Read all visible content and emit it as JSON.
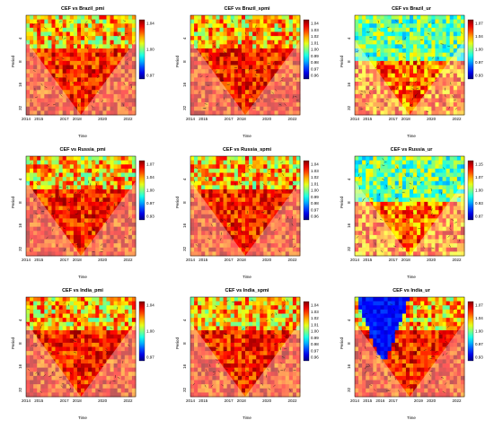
{
  "chart_data": [
    {
      "type": "heatmap",
      "title": "CEF  vs  Brazil_pmi",
      "xlabel": "Time",
      "ylabel": "Period",
      "x_ticks": [
        "2014",
        "2015",
        "2017",
        "2018",
        "2020",
        "2022"
      ],
      "y_ticks": [
        "4",
        "8",
        "16",
        "32"
      ],
      "colorbar_ticks": [
        "1.04",
        "1.00",
        "0.97"
      ],
      "xlim": [
        2014,
        2022.6
      ],
      "ylim_log2": [
        1,
        5.3
      ]
    },
    {
      "type": "heatmap",
      "title": "CEF  vs  Brazil_spmi",
      "xlabel": "Time",
      "ylabel": "Period",
      "x_ticks": [
        "2014",
        "2015",
        "2017",
        "2018",
        "2020",
        "2022"
      ],
      "y_ticks": [
        "4",
        "8",
        "16",
        "32"
      ],
      "colorbar_ticks": [
        "1.04",
        "1.03",
        "1.02",
        "1.01",
        "1.00",
        "0.99",
        "0.98",
        "0.97",
        "0.96"
      ],
      "xlim": [
        2014,
        2022.6
      ],
      "ylim_log2": [
        1,
        5.3
      ]
    },
    {
      "type": "heatmap",
      "title": "CEF  vs  Brazil_ur",
      "xlabel": "Time",
      "ylabel": "Period",
      "x_ticks": [
        "2014",
        "2015",
        "2017",
        "2018",
        "2020",
        "2022"
      ],
      "y_ticks": [
        "4",
        "8",
        "16",
        "32"
      ],
      "colorbar_ticks": [
        "1.07",
        "1.04",
        "1.00",
        "0.97",
        "0.93"
      ],
      "xlim": [
        2014,
        2022.6
      ],
      "ylim_log2": [
        1,
        5.3
      ]
    },
    {
      "type": "heatmap",
      "title": "CEF  vs  Russia_pmi",
      "xlabel": "Time",
      "ylabel": "Period",
      "x_ticks": [
        "2014",
        "2015",
        "2017",
        "2018",
        "2020",
        "2022"
      ],
      "y_ticks": [
        "4",
        "8",
        "16",
        "32"
      ],
      "colorbar_ticks": [
        "1.07",
        "1.04",
        "1.00",
        "0.97",
        "0.93"
      ],
      "xlim": [
        2014,
        2022.6
      ],
      "ylim_log2": [
        1,
        5.3
      ]
    },
    {
      "type": "heatmap",
      "title": "CEF  vs  Russia_spmi",
      "xlabel": "Time",
      "ylabel": "Period",
      "x_ticks": [
        "2014",
        "2015",
        "2017",
        "2018",
        "2020",
        "2022"
      ],
      "y_ticks": [
        "4",
        "8",
        "16",
        "32"
      ],
      "colorbar_ticks": [
        "1.04",
        "1.03",
        "1.02",
        "1.01",
        "1.00",
        "0.99",
        "0.98",
        "0.97",
        "0.96"
      ],
      "xlim": [
        2014,
        2022.6
      ],
      "ylim_log2": [
        1,
        5.3
      ]
    },
    {
      "type": "heatmap",
      "title": "CEF  vs  Russia_ur",
      "xlabel": "Time",
      "ylabel": "Period",
      "x_ticks": [
        "2014",
        "2015",
        "2017",
        "2018",
        "2020",
        "2022"
      ],
      "y_ticks": [
        "4",
        "8",
        "16",
        "32"
      ],
      "colorbar_ticks": [
        "1.15",
        "1.07",
        "1.00",
        "0.93",
        "0.87"
      ],
      "xlim": [
        2014,
        2022.6
      ],
      "ylim_log2": [
        1,
        5.3
      ]
    },
    {
      "type": "heatmap",
      "title": "CEF  vs  India_pmi",
      "xlabel": "Time",
      "ylabel": "Period",
      "x_ticks": [
        "2014",
        "2015",
        "2017",
        "2018",
        "2020",
        "2022"
      ],
      "y_ticks": [
        "4",
        "8",
        "16",
        "32"
      ],
      "colorbar_ticks": [
        "1.04",
        "1.00",
        "0.97"
      ],
      "xlim": [
        2014,
        2022.6
      ],
      "ylim_log2": [
        1,
        5.3
      ]
    },
    {
      "type": "heatmap",
      "title": "CEF  vs  India_spmi",
      "xlabel": "Time",
      "ylabel": "Period",
      "x_ticks": [
        "2014",
        "2015",
        "2017",
        "2018",
        "2020",
        "2022"
      ],
      "y_ticks": [
        "4",
        "8",
        "16",
        "32"
      ],
      "colorbar_ticks": [
        "1.04",
        "1.03",
        "1.02",
        "1.01",
        "1.00",
        "0.99",
        "0.98",
        "0.97",
        "0.96"
      ],
      "xlim": [
        2014,
        2022.6
      ],
      "ylim_log2": [
        1,
        5.3
      ]
    },
    {
      "type": "heatmap",
      "title": "CEF  vs  India_ur",
      "xlabel": "Time",
      "ylabel": "Period",
      "x_ticks": [
        "2014",
        "2015",
        "2016",
        "2017",
        "2019",
        "2020",
        "2022"
      ],
      "y_ticks": [
        "4",
        "8",
        "16",
        "32"
      ],
      "colorbar_ticks": [
        "1.07",
        "1.04",
        "1.00",
        "0.97",
        "0.93"
      ],
      "xlim": [
        2014,
        2022.6
      ],
      "ylim_log2": [
        1,
        5.3
      ]
    }
  ]
}
